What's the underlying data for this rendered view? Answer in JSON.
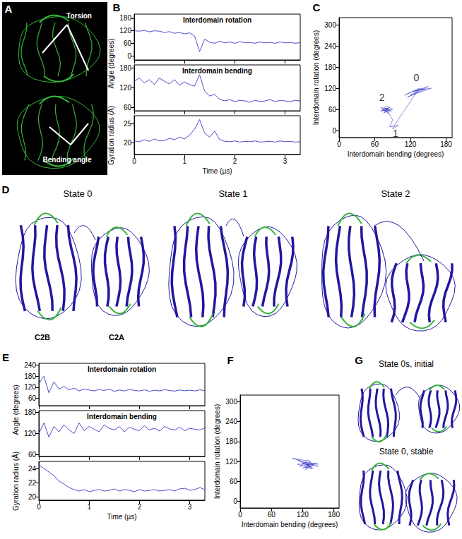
{
  "panel_labels": [
    "A",
    "B",
    "C",
    "D",
    "E",
    "F",
    "G"
  ],
  "structures": {
    "A": {
      "labels": [
        "Torsion",
        "Bending angle"
      ]
    },
    "D": [
      {
        "title": "State 0",
        "domain_labels": [
          "C2B",
          "C2A"
        ]
      },
      {
        "title": "State 1"
      },
      {
        "title": "State 2"
      }
    ],
    "G": [
      {
        "title": "State 0s, initial"
      },
      {
        "title": "State 0, stable"
      }
    ]
  },
  "chart_data": [
    {
      "type": "line",
      "title": "Interdomain rotation",
      "ylabel": "Angle (degrees)",
      "color": "#1f1fbf",
      "x": [
        0,
        0.1,
        0.2,
        0.3,
        0.4,
        0.5,
        0.6,
        0.7,
        0.8,
        0.9,
        1.0,
        1.1,
        1.2,
        1.3,
        1.4,
        1.5,
        1.6,
        1.7,
        1.8,
        1.9,
        2.0,
        2.1,
        2.2,
        2.3,
        2.4,
        2.5,
        2.6,
        2.7,
        2.8,
        2.9,
        3.0,
        3.1,
        3.2,
        3.3
      ],
      "values": [
        120,
        118,
        122,
        115,
        120,
        118,
        112,
        116,
        108,
        112,
        105,
        110,
        95,
        20,
        80,
        65,
        60,
        70,
        62,
        66,
        60,
        68,
        62,
        64,
        60,
        66,
        62,
        64,
        60,
        66,
        62,
        64,
        60,
        63
      ],
      "xlim": [
        0,
        3.3
      ],
      "xticks": [
        0,
        1,
        2,
        3
      ],
      "ylim": [
        -20,
        200
      ],
      "yticks": [
        0,
        60,
        120,
        180
      ],
      "grid": false,
      "tick_labels": "y"
    },
    {
      "type": "line",
      "title": "Interdomain bending",
      "color": "#1f1fbf",
      "x": [
        0,
        0.1,
        0.2,
        0.3,
        0.4,
        0.5,
        0.6,
        0.7,
        0.8,
        0.9,
        1.0,
        1.1,
        1.2,
        1.3,
        1.4,
        1.5,
        1.6,
        1.7,
        1.8,
        1.9,
        2.0,
        2.1,
        2.2,
        2.3,
        2.4,
        2.5,
        2.6,
        2.7,
        2.8,
        2.9,
        3.0,
        3.1,
        3.2,
        3.3
      ],
      "values": [
        140,
        150,
        135,
        145,
        130,
        150,
        140,
        132,
        145,
        128,
        138,
        130,
        125,
        160,
        110,
        95,
        100,
        85,
        80,
        84,
        78,
        82,
        80,
        76,
        82,
        78,
        80,
        84,
        78,
        82,
        80,
        78,
        82,
        80
      ],
      "xlim": [
        0,
        3.3
      ],
      "xticks": [
        0,
        1,
        2,
        3
      ],
      "ylim": [
        50,
        190
      ],
      "yticks": [
        60,
        120,
        180
      ],
      "grid": false,
      "tick_labels": "y"
    },
    {
      "type": "line",
      "ylabel": "Gyration radius (Å)",
      "xlabel": "Time (µs)",
      "color": "#1f1fbf",
      "x": [
        0,
        0.1,
        0.2,
        0.3,
        0.4,
        0.5,
        0.6,
        0.7,
        0.8,
        0.9,
        1.0,
        1.1,
        1.2,
        1.3,
        1.4,
        1.5,
        1.6,
        1.7,
        1.8,
        1.9,
        2.0,
        2.1,
        2.2,
        2.3,
        2.4,
        2.5,
        2.6,
        2.7,
        2.8,
        2.9,
        3.0,
        3.1,
        3.2,
        3.3
      ],
      "values": [
        20.5,
        20.3,
        20.8,
        20.4,
        21.0,
        20.5,
        20.6,
        21.2,
        20.8,
        21.5,
        21.0,
        22.0,
        23.5,
        26.0,
        22.5,
        21.5,
        23.0,
        20.8,
        20.4,
        20.3,
        20.5,
        20.2,
        20.4,
        20.3,
        20.5,
        20.2,
        20.3,
        20.4,
        20.2,
        20.5,
        20.3,
        20.4,
        20.2,
        20.3
      ],
      "xlim": [
        0,
        3.3
      ],
      "xticks": [
        0,
        1,
        2,
        3
      ],
      "ylim": [
        17,
        27
      ],
      "yticks": [
        20,
        25
      ],
      "grid": false
    },
    {
      "type": "line",
      "xlabel": "Interdomain bending (degrees)",
      "ylabel": "Interdomain rotation (degrees)",
      "color": "#1f1fbf",
      "x": [
        140,
        125,
        150,
        120,
        135,
        155,
        130,
        115,
        145,
        125,
        110,
        135,
        95,
        90,
        100,
        85,
        90,
        80,
        70,
        85,
        75,
        90,
        80,
        72,
        88,
        78,
        83,
        70,
        86,
        76,
        82,
        74
      ],
      "values": [
        120,
        110,
        125,
        100,
        115,
        120,
        105,
        95,
        118,
        112,
        100,
        120,
        20,
        5,
        15,
        10,
        30,
        60,
        55,
        65,
        50,
        60,
        70,
        58,
        55,
        62,
        48,
        65,
        60,
        55,
        64,
        60
      ],
      "xlim": [
        0,
        190
      ],
      "xticks": [
        0,
        60,
        120,
        180
      ],
      "ylim": [
        -20,
        320
      ],
      "yticks": [
        0,
        60,
        120,
        180,
        240,
        300
      ],
      "grid": false,
      "annotations": [
        {
          "text": "0",
          "x": 130,
          "y": 150
        },
        {
          "text": "2",
          "x": 72,
          "y": 95
        },
        {
          "text": "1",
          "x": 95,
          "y": -8
        }
      ]
    },
    {
      "type": "line",
      "title": "Interdomain rotation",
      "ylabel": "Angle (degrees)",
      "color": "#1f1fbf",
      "x": [
        0,
        0.1,
        0.2,
        0.3,
        0.4,
        0.5,
        0.6,
        0.7,
        0.8,
        0.9,
        1.0,
        1.1,
        1.2,
        1.3,
        1.4,
        1.5,
        1.6,
        1.7,
        1.8,
        1.9,
        2.0,
        2.1,
        2.2,
        2.3,
        2.4,
        2.5,
        2.6,
        2.7,
        2.8,
        2.9,
        3.0,
        3.1,
        3.2,
        3.3
      ],
      "values": [
        140,
        180,
        90,
        150,
        110,
        125,
        105,
        115,
        100,
        110,
        105,
        100,
        108,
        102,
        110,
        98,
        105,
        100,
        108,
        103,
        100,
        106,
        98,
        104,
        100,
        107,
        102,
        99,
        105,
        101,
        104,
        100,
        106,
        102
      ],
      "xlim": [
        0,
        3.3
      ],
      "xticks": [
        0,
        1,
        2,
        3
      ],
      "ylim": [
        20,
        250
      ],
      "yticks": [
        60,
        120,
        180,
        240
      ],
      "grid": false,
      "tick_labels": "y"
    },
    {
      "type": "line",
      "title": "Interdomain bending",
      "color": "#1f1fbf",
      "x": [
        0,
        0.1,
        0.2,
        0.3,
        0.4,
        0.5,
        0.6,
        0.7,
        0.8,
        0.9,
        1.0,
        1.1,
        1.2,
        1.3,
        1.4,
        1.5,
        1.6,
        1.7,
        1.8,
        1.9,
        2.0,
        2.1,
        2.2,
        2.3,
        2.4,
        2.5,
        2.6,
        2.7,
        2.8,
        2.9,
        3.0,
        3.1,
        3.2,
        3.3
      ],
      "values": [
        120,
        150,
        110,
        140,
        125,
        145,
        130,
        120,
        150,
        128,
        140,
        132,
        125,
        145,
        135,
        130,
        140,
        125,
        138,
        132,
        128,
        142,
        130,
        135,
        127,
        140,
        133,
        130,
        138,
        128,
        135,
        132,
        130,
        136
      ],
      "xlim": [
        0,
        3.3
      ],
      "xticks": [
        0,
        1,
        2,
        3
      ],
      "ylim": [
        55,
        185
      ],
      "yticks": [
        60,
        120,
        180
      ],
      "grid": false,
      "tick_labels": "y"
    },
    {
      "type": "line",
      "ylabel": "Gyration radius (Å)",
      "xlabel": "Time (µs)",
      "color": "#1f1fbf",
      "x": [
        0,
        0.1,
        0.2,
        0.3,
        0.4,
        0.5,
        0.6,
        0.7,
        0.8,
        0.9,
        1.0,
        1.1,
        1.2,
        1.3,
        1.4,
        1.5,
        1.6,
        1.7,
        1.8,
        1.9,
        2.0,
        2.1,
        2.2,
        2.3,
        2.4,
        2.5,
        2.6,
        2.7,
        2.8,
        2.9,
        3.0,
        3.1,
        3.2,
        3.3
      ],
      "values": [
        24.5,
        24.0,
        23.5,
        23.0,
        22.2,
        21.8,
        21.3,
        21.0,
        20.8,
        21.0,
        20.7,
        20.9,
        21.0,
        20.8,
        20.9,
        21.1,
        20.8,
        21.0,
        20.9,
        20.7,
        21.0,
        20.8,
        20.9,
        21.0,
        20.8,
        20.9,
        21.0,
        20.8,
        21.1,
        21.2,
        20.9,
        21.0,
        21.3,
        21.0
      ],
      "xlim": [
        0,
        3.3
      ],
      "xticks": [
        0,
        1,
        2,
        3
      ],
      "ylim": [
        19.5,
        25
      ],
      "yticks": [
        20,
        22,
        24
      ],
      "grid": false
    },
    {
      "type": "line",
      "xlabel": "Interdomain bending (degrees)",
      "ylabel": "Interdomain rotation (degrees)",
      "color": "#1f1fbf",
      "x": [
        130,
        110,
        140,
        120,
        150,
        100,
        135,
        125,
        145,
        115,
        130,
        140,
        120,
        135,
        125,
        150,
        110,
        138,
        128,
        132
      ],
      "values": [
        110,
        125,
        100,
        115,
        105,
        130,
        120,
        95,
        115,
        105,
        125,
        110,
        100,
        105,
        118,
        112,
        112,
        98,
        108,
        115
      ],
      "xlim": [
        0,
        190
      ],
      "xticks": [
        0,
        60,
        120,
        180
      ],
      "ylim": [
        -20,
        320
      ],
      "yticks": [
        0,
        60,
        120,
        180,
        240,
        300
      ],
      "grid": false
    }
  ]
}
